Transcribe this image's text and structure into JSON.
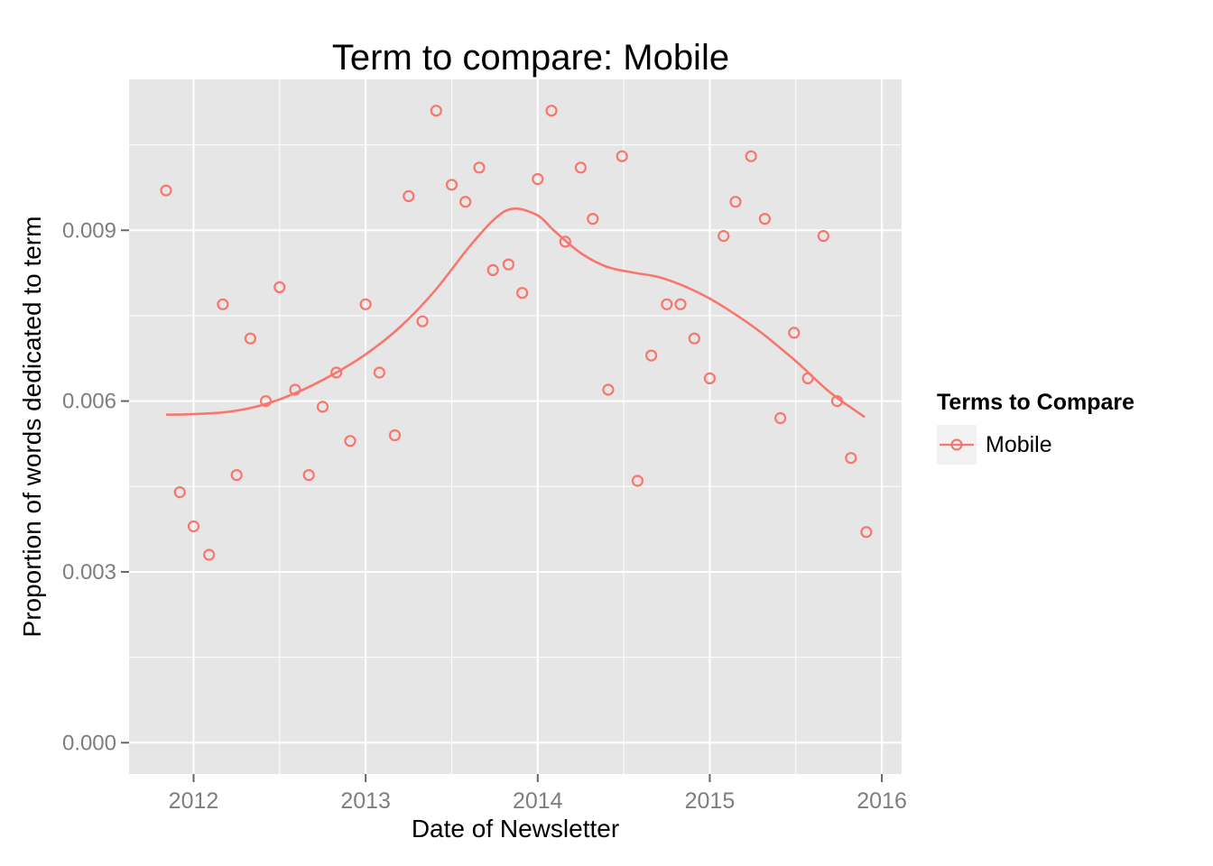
{
  "chart_data": {
    "type": "scatter",
    "title": "Term to compare: Mobile",
    "xlabel": "Date of Newsletter",
    "ylabel": "Proportion of words dedicated to term",
    "legend_title": "Terms to Compare",
    "legend_position": "right",
    "grid": true,
    "x_domain": [
      2011.625,
      2016.115
    ],
    "y_domain": [
      -0.00055,
      0.01165
    ],
    "x_ticks": {
      "values": [
        2012,
        2013,
        2014,
        2015,
        2016
      ],
      "labels": [
        "2012",
        "2013",
        "2014",
        "2015",
        "2016"
      ]
    },
    "x_minor": [
      2012.5,
      2013.5,
      2014.5,
      2015.5
    ],
    "y_ticks": {
      "values": [
        0,
        0.003,
        0.006,
        0.009
      ],
      "labels": [
        "0.000",
        "0.003",
        "0.006",
        "0.009"
      ]
    },
    "y_minor": [
      0.0015,
      0.0045,
      0.0075,
      0.0105
    ],
    "colors": {
      "panel_bg": "#E6E6E6",
      "grid": "#FFFFFF",
      "tick_label": "#7E7E7E",
      "tick_mark": "#666666",
      "legend_key_bg": "#F2F2F2",
      "text": "#000000"
    },
    "series": [
      {
        "name": "Mobile",
        "color": "#F8766D",
        "marker": "open-circle",
        "points": [
          [
            2011.84,
            0.0097
          ],
          [
            2011.92,
            0.0044
          ],
          [
            2012.0,
            0.0038
          ],
          [
            2012.09,
            0.0033
          ],
          [
            2012.17,
            0.0077
          ],
          [
            2012.25,
            0.0047
          ],
          [
            2012.33,
            0.0071
          ],
          [
            2012.42,
            0.006
          ],
          [
            2012.5,
            0.008
          ],
          [
            2012.59,
            0.0062
          ],
          [
            2012.67,
            0.0047
          ],
          [
            2012.75,
            0.0059
          ],
          [
            2012.83,
            0.0065
          ],
          [
            2012.91,
            0.0053
          ],
          [
            2013.0,
            0.0077
          ],
          [
            2013.08,
            0.0065
          ],
          [
            2013.17,
            0.0054
          ],
          [
            2013.25,
            0.0096
          ],
          [
            2013.33,
            0.0074
          ],
          [
            2013.41,
            0.0111
          ],
          [
            2013.5,
            0.0098
          ],
          [
            2013.58,
            0.0095
          ],
          [
            2013.66,
            0.0101
          ],
          [
            2013.74,
            0.0083
          ],
          [
            2013.83,
            0.0084
          ],
          [
            2013.91,
            0.0079
          ],
          [
            2014.0,
            0.0099
          ],
          [
            2014.08,
            0.0111
          ],
          [
            2014.16,
            0.0088
          ],
          [
            2014.25,
            0.0101
          ],
          [
            2014.32,
            0.0092
          ],
          [
            2014.41,
            0.0062
          ],
          [
            2014.49,
            0.0103
          ],
          [
            2014.58,
            0.0046
          ],
          [
            2014.66,
            0.0068
          ],
          [
            2014.75,
            0.0077
          ],
          [
            2014.83,
            0.0077
          ],
          [
            2014.91,
            0.0071
          ],
          [
            2015.0,
            0.0064
          ],
          [
            2015.08,
            0.0089
          ],
          [
            2015.15,
            0.0095
          ],
          [
            2015.24,
            0.0103
          ],
          [
            2015.32,
            0.0092
          ],
          [
            2015.41,
            0.0057
          ],
          [
            2015.49,
            0.0072
          ],
          [
            2015.57,
            0.0064
          ],
          [
            2015.66,
            0.0089
          ],
          [
            2015.74,
            0.006
          ],
          [
            2015.82,
            0.005
          ],
          [
            2015.91,
            0.0037
          ]
        ],
        "smooth_line": [
          [
            2011.84,
            0.00576
          ],
          [
            2012.0,
            0.00577
          ],
          [
            2012.2,
            0.00581
          ],
          [
            2012.4,
            0.00593
          ],
          [
            2012.6,
            0.00615
          ],
          [
            2012.8,
            0.00645
          ],
          [
            2013.0,
            0.00682
          ],
          [
            2013.2,
            0.0073
          ],
          [
            2013.4,
            0.00793
          ],
          [
            2013.6,
            0.0087
          ],
          [
            2013.75,
            0.0092
          ],
          [
            2013.86,
            0.00938
          ],
          [
            2014.0,
            0.00926
          ],
          [
            2014.1,
            0.00898
          ],
          [
            2014.25,
            0.0086
          ],
          [
            2014.4,
            0.00836
          ],
          [
            2014.55,
            0.00826
          ],
          [
            2014.7,
            0.00818
          ],
          [
            2014.85,
            0.00802
          ],
          [
            2015.0,
            0.0078
          ],
          [
            2015.15,
            0.00752
          ],
          [
            2015.3,
            0.0072
          ],
          [
            2015.5,
            0.0067
          ],
          [
            2015.7,
            0.00615
          ],
          [
            2015.9,
            0.00572
          ]
        ]
      }
    ]
  }
}
